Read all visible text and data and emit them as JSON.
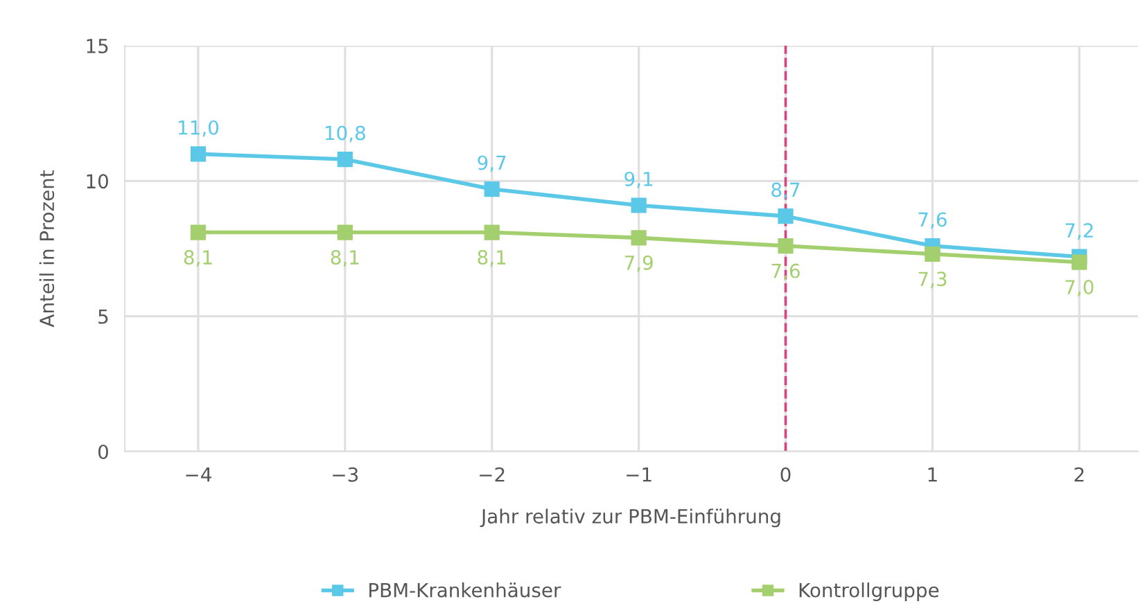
{
  "chart_data": {
    "type": "line",
    "xlabel": "Jahr relativ zur PBM-Einführung",
    "ylabel": "Anteil in Prozent",
    "x": [
      -4,
      -3,
      -2,
      -1,
      0,
      1,
      2
    ],
    "series": [
      {
        "name": "PBM-Krankenhäuser",
        "color": "#5bc8e8",
        "values": [
          11.0,
          10.8,
          9.7,
          9.1,
          8.7,
          7.6,
          7.2
        ],
        "value_labels": [
          "11,0",
          "10,8",
          "9,7",
          "9,1",
          "8,7",
          "7,6",
          "7,2"
        ]
      },
      {
        "name": "Kontrollgruppe",
        "color": "#a3cf6e",
        "values": [
          8.1,
          8.1,
          8.1,
          7.9,
          7.6,
          7.3,
          7.0
        ],
        "value_labels": [
          "8,1",
          "8,1",
          "8,1",
          "7,9",
          "7,6",
          "7,3",
          "7,0"
        ]
      }
    ],
    "xlim": [
      -4.5,
      2.4
    ],
    "xticks": [
      {
        "value": -4,
        "label": "−4"
      },
      {
        "value": -3,
        "label": "−3"
      },
      {
        "value": -2,
        "label": "−2"
      },
      {
        "value": -1,
        "label": "−1"
      },
      0,
      1,
      2
    ],
    "ylim": [
      0,
      15
    ],
    "yticks": [
      0,
      5,
      10,
      15
    ],
    "ref_lines": [
      {
        "axis": "x",
        "value": 0,
        "color": "#d6457f",
        "line_style": "dashed"
      }
    ],
    "grid": true,
    "legend": "bottom",
    "marker": "square",
    "line_style": "solid"
  }
}
